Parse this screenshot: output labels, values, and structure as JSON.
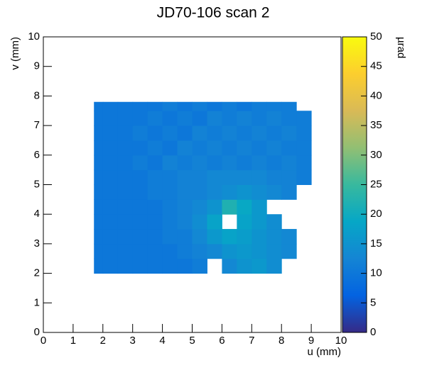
{
  "chart_data": {
    "type": "heatmap",
    "title": "JD70-106 scan 2",
    "x_label": "u (mm)",
    "y_label": "v (mm)",
    "z_label": "µrad",
    "xlim": [
      0,
      10
    ],
    "ylim": [
      0,
      10
    ],
    "zlim": [
      0,
      50
    ],
    "xticks": [
      0,
      1,
      2,
      3,
      4,
      5,
      6,
      7,
      8,
      9,
      10
    ],
    "yticks": [
      0,
      1,
      2,
      3,
      4,
      5,
      6,
      7,
      8,
      9,
      10
    ],
    "zticks": [
      0,
      5,
      10,
      15,
      20,
      25,
      30,
      35,
      40,
      45,
      50
    ],
    "colorscale": [
      "#352a87",
      "#0363e1",
      "#1485d4",
      "#06a7c6",
      "#38b99e",
      "#92bf73",
      "#d9ba56",
      "#fcce2e",
      "#f9fb0e"
    ],
    "x_edges": [
      1.7,
      2,
      2.5,
      3,
      3.5,
      4,
      4.5,
      5,
      5.5,
      6,
      6.5,
      7,
      7.5,
      8,
      8.5,
      9
    ],
    "y_edges": [
      2,
      2.5,
      3,
      3.5,
      4,
      4.5,
      5,
      5.5,
      6,
      6.5,
      7,
      7.5,
      7.8
    ],
    "z": [
      [
        10,
        10,
        10,
        10,
        10,
        10,
        10,
        11,
        null,
        13,
        15,
        16,
        14,
        null,
        null
      ],
      [
        10,
        10,
        10,
        10,
        10,
        10,
        11,
        12,
        13,
        15,
        16,
        15,
        14,
        13,
        null
      ],
      [
        10,
        10,
        10,
        10,
        10,
        11,
        11,
        13,
        16,
        18,
        17,
        15,
        14,
        13,
        null
      ],
      [
        10,
        10,
        10,
        10,
        10,
        11,
        12,
        14,
        18,
        null,
        18,
        16,
        14,
        null,
        null
      ],
      [
        10,
        10,
        10,
        10,
        10,
        11,
        12,
        13,
        15,
        22,
        19,
        16,
        null,
        null,
        null
      ],
      [
        10,
        10,
        10,
        10,
        11,
        11,
        12,
        12,
        13,
        14,
        15,
        14,
        13,
        12,
        null
      ],
      [
        10,
        10,
        10,
        10,
        11,
        11,
        12,
        12,
        13,
        13,
        13,
        13,
        12,
        12,
        11
      ],
      [
        10,
        10,
        10,
        11,
        10,
        12,
        11,
        12,
        11,
        12,
        11,
        12,
        11,
        12,
        11
      ],
      [
        10,
        10,
        10,
        10,
        11,
        10,
        12,
        11,
        12,
        11,
        12,
        11,
        12,
        11,
        11
      ],
      [
        10,
        10,
        10,
        11,
        10,
        11,
        10,
        12,
        11,
        12,
        11,
        12,
        11,
        12,
        11
      ],
      [
        10,
        10,
        10,
        10,
        11,
        10,
        11,
        10,
        12,
        11,
        12,
        11,
        12,
        11,
        11
      ],
      [
        10,
        10,
        10,
        10,
        10,
        11,
        10,
        11,
        10,
        11,
        10,
        11,
        11,
        11,
        null
      ]
    ]
  }
}
